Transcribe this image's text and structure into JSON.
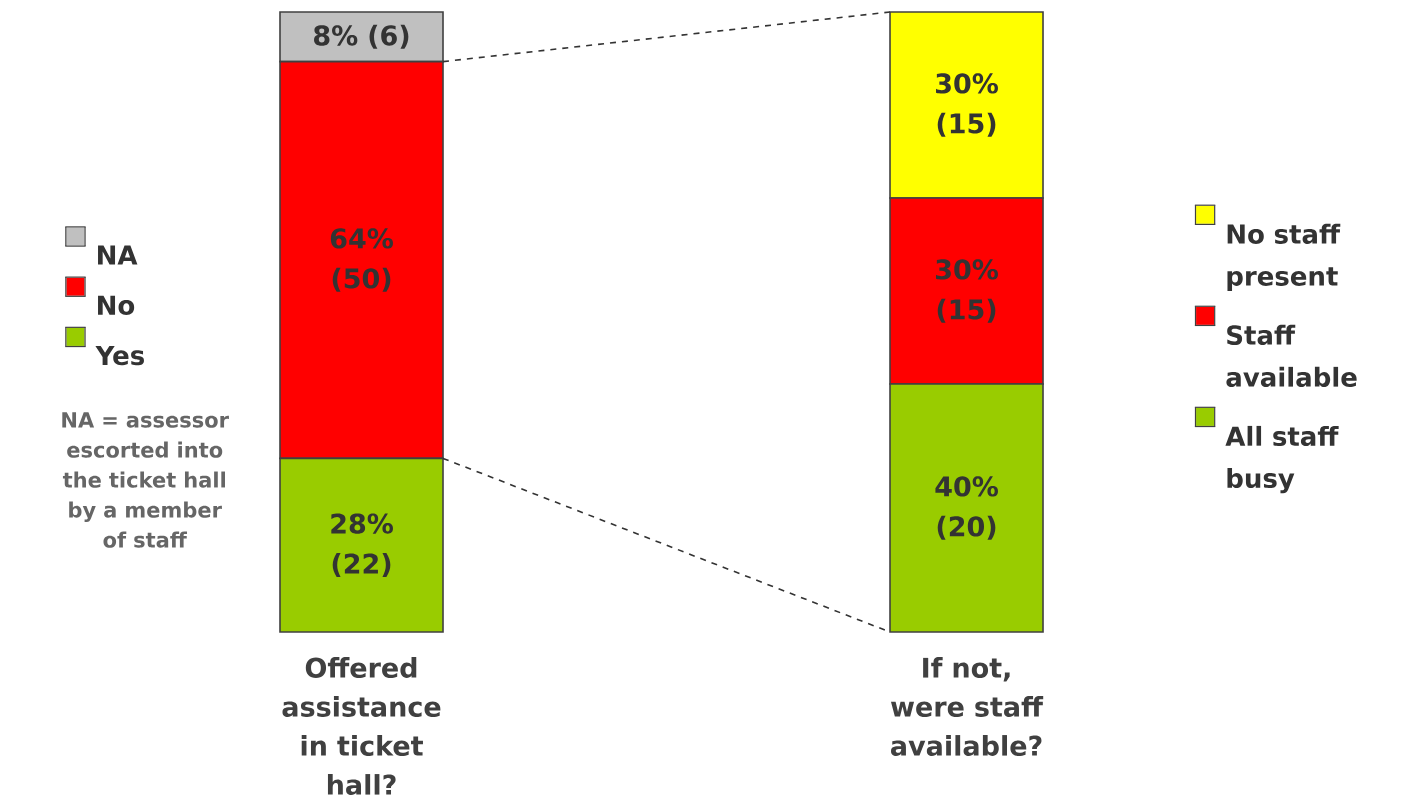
{
  "chart_data": [
    {
      "type": "bar",
      "stacked": true,
      "categories": [
        "Offered assistance in ticket hall?"
      ],
      "legend": "left",
      "series": [
        {
          "name": "Yes",
          "color": "#99cc00",
          "values": [
            28
          ],
          "value_labels": [
            "28% (22)"
          ]
        },
        {
          "name": "No",
          "color": "#ff0000",
          "values": [
            64
          ],
          "value_labels": [
            "64% (50)"
          ]
        },
        {
          "name": "NA",
          "color": "#c0c0c0",
          "values": [
            8
          ],
          "value_labels": [
            "8% (6)"
          ]
        }
      ],
      "annotations": [
        "NA = assessor escorted into the ticket hall by a member of staff"
      ]
    },
    {
      "type": "bar",
      "stacked": true,
      "categories": [
        "If not, were staff available?"
      ],
      "legend": "right",
      "series": [
        {
          "name": "All staff busy",
          "color": "#99cc00",
          "values": [
            40
          ],
          "value_labels": [
            "40% (20)"
          ]
        },
        {
          "name": "Staff available",
          "color": "#ff0000",
          "values": [
            30
          ],
          "value_labels": [
            "30% (15)"
          ]
        },
        {
          "name": "No staff present",
          "color": "#ffff00",
          "values": [
            30
          ],
          "value_labels": [
            "30% (15)"
          ]
        }
      ]
    }
  ]
}
